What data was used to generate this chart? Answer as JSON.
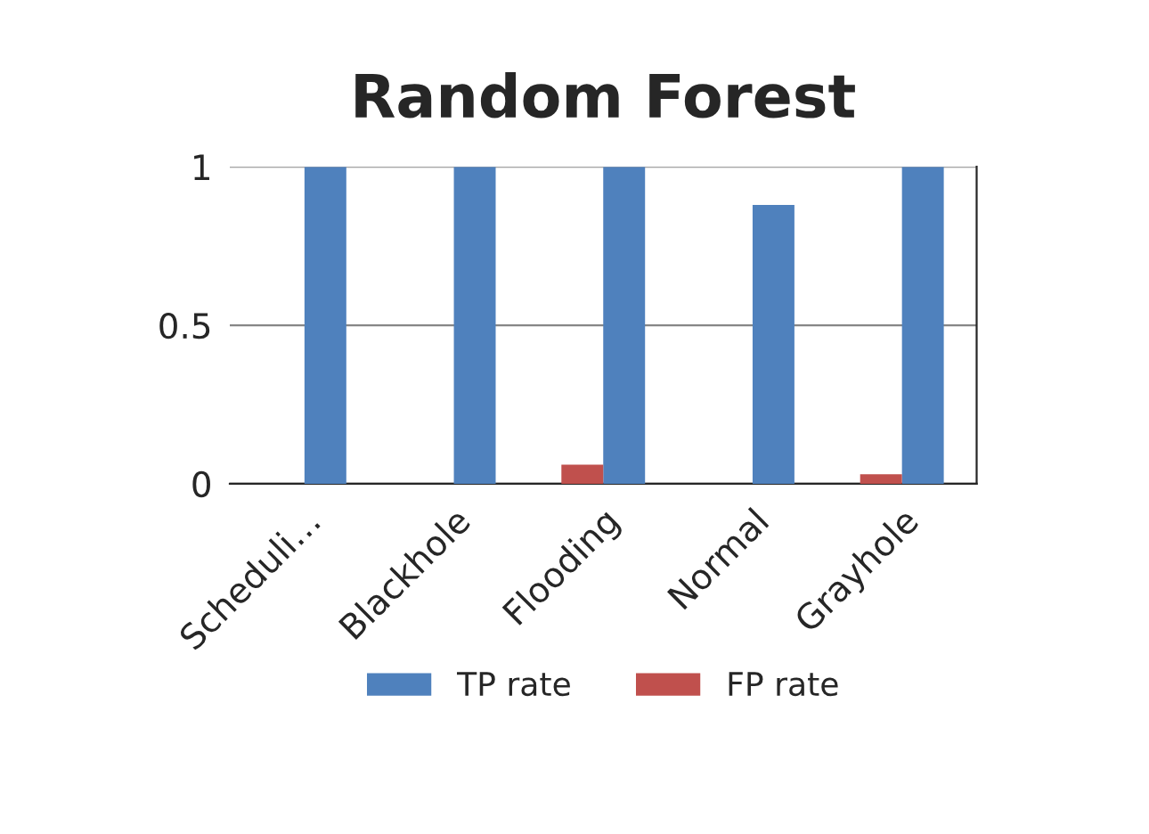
{
  "chart_data": {
    "type": "bar",
    "title": "Random Forest",
    "categories": [
      "Scheduli…",
      "Blackhole",
      "Flooding",
      "Normal",
      "Grayhole"
    ],
    "series": [
      {
        "name": "TP rate",
        "color": "#4f81bd",
        "values": [
          1,
          1,
          1,
          0.88,
          1
        ]
      },
      {
        "name": "FP rate",
        "color": "#c0504d",
        "values": [
          null,
          null,
          0.06,
          null,
          0.03
        ]
      }
    ],
    "ylim": [
      0,
      1
    ],
    "yticks": [
      0,
      0.5,
      1
    ],
    "grid": "y",
    "legend": "bottom"
  }
}
